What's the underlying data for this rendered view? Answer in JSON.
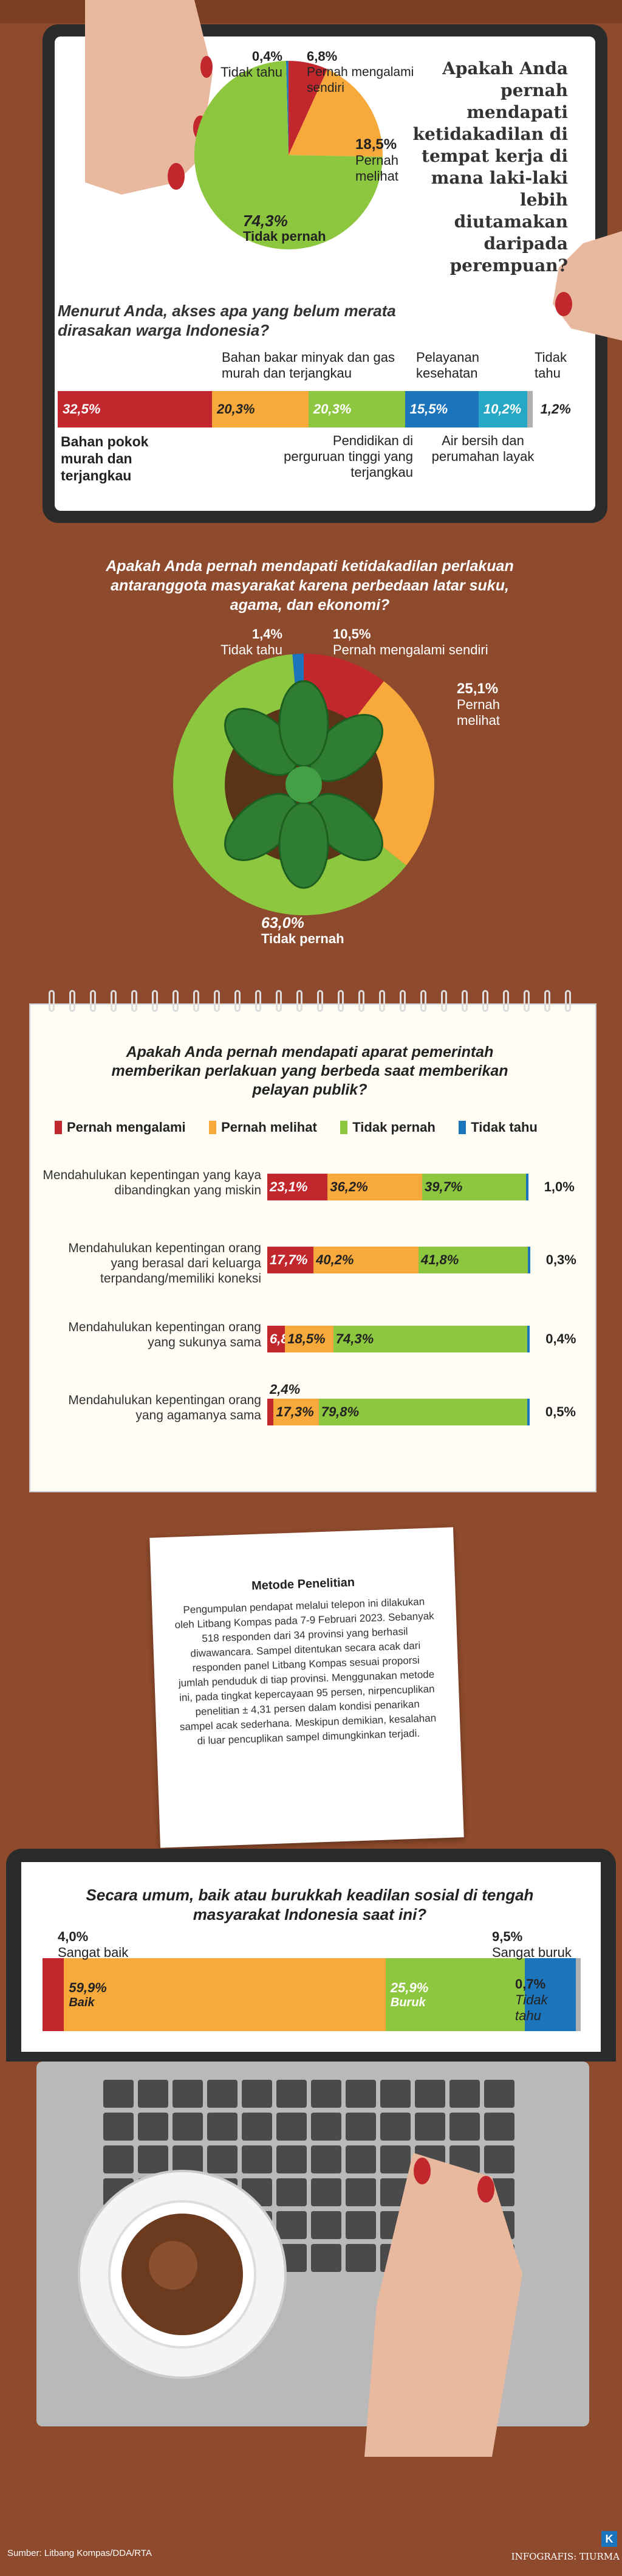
{
  "colors": {
    "red": "#c1272d",
    "orange": "#f7a93b",
    "green": "#8dc63f",
    "blue": "#1c75bc",
    "teal": "#26a7c4",
    "gray": "#b0b0b0",
    "bg": "#8e4a2c"
  },
  "section1": {
    "chart_data": {
      "type": "pie",
      "title": "Apakah Anda pernah mendapati ketidakadilan di tempat kerja di mana laki-laki lebih diutamakan daripada perempuan?",
      "labels": [
        "Tidak tahu",
        "Pernah mengalami sendiri",
        "Pernah melihat",
        "Tidak pernah"
      ],
      "values": [
        0.4,
        6.8,
        18.5,
        74.3
      ],
      "value_labels": [
        "0,4%",
        "6,8%",
        "18,5%",
        "74,3%"
      ],
      "colors": [
        "#1c75bc",
        "#c1272d",
        "#f7a93b",
        "#8dc63f"
      ]
    }
  },
  "section2": {
    "chart_data": {
      "type": "bar",
      "orientation": "stacked-horizontal",
      "title": "Menurut Anda, akses apa yang belum merata dirasakan warga Indonesia?",
      "labels": [
        "Bahan pokok murah dan terjangkau",
        "Bahan bakar minyak dan gas murah dan terjangkau",
        "Pendidikan di perguruan tinggi yang terjangkau",
        "Pelayanan kesehatan",
        "Air bersih dan perumahan layak",
        "Tidak tahu"
      ],
      "values": [
        32.5,
        20.3,
        20.3,
        15.5,
        10.2,
        1.2
      ],
      "value_labels": [
        "32,5%",
        "20,3%",
        "20,3%",
        "15,5%",
        "10,2%",
        "1,2%"
      ],
      "colors": [
        "#c1272d",
        "#f7a93b",
        "#8dc63f",
        "#1c75bc",
        "#26a7c4",
        "#b0b0b0"
      ]
    }
  },
  "section3": {
    "chart_data": {
      "type": "pie",
      "title": "Apakah Anda pernah mendapati ketidakadilan perlakuan antaranggota masyarakat karena perbedaan latar suku, agama, dan ekonomi?",
      "labels": [
        "Tidak tahu",
        "Pernah mengalami sendiri",
        "Pernah melihat",
        "Tidak pernah"
      ],
      "values": [
        1.4,
        10.5,
        25.1,
        63.0
      ],
      "value_labels": [
        "1,4%",
        "10,5%",
        "25,1%",
        "63,0%"
      ],
      "colors": [
        "#1c75bc",
        "#c1272d",
        "#f7a93b",
        "#8dc63f"
      ]
    }
  },
  "section4": {
    "chart_data": {
      "type": "bar",
      "orientation": "stacked-horizontal",
      "title": "Apakah Anda pernah mendapati aparat pemerintah memberikan perlakuan yang berbeda saat memberikan pelayan publik?",
      "series_names": [
        "Pernah mengalami",
        "Pernah melihat",
        "Tidak pernah",
        "Tidak tahu"
      ],
      "colors": [
        "#c1272d",
        "#f7a93b",
        "#8dc63f",
        "#1c75bc"
      ],
      "categories": [
        "Mendahulukan kepentingan yang kaya dibandingkan yang miskin",
        "Mendahulukan kepentingan orang yang berasal dari keluarga terpandang/memiliki koneksi",
        "Mendahulukan kepentingan orang yang sukunya sama",
        "Mendahulukan kepentingan orang yang agamanya sama"
      ],
      "values": [
        [
          23.1,
          36.2,
          39.7,
          1.0
        ],
        [
          17.7,
          40.2,
          41.8,
          0.3
        ],
        [
          6.8,
          18.5,
          74.3,
          0.4
        ],
        [
          2.4,
          17.3,
          79.8,
          0.5
        ]
      ],
      "value_labels": [
        [
          "23,1%",
          "36,2%",
          "39,7%",
          "1,0%"
        ],
        [
          "17,7%",
          "40,2%",
          "41,8%",
          "0,3%"
        ],
        [
          "6,8%",
          "18,5%",
          "74,3%",
          "0,4%"
        ],
        [
          "2,4%",
          "17,3%",
          "79,8%",
          "0,5%"
        ]
      ]
    }
  },
  "method": {
    "title": "Metode Penelitian",
    "body": "Pengumpulan pendapat melalui telepon ini dilakukan oleh Litbang Kompas pada 7-9 Februari 2023. Sebanyak 518 responden dari 34 provinsi yang berhasil diwawancara. Sampel ditentukan secara acak dari responden panel Litbang Kompas sesuai proporsi jumlah penduduk di tiap provinsi. Menggunakan metode ini, pada tingkat kepercayaan 95 persen, nirpencuplikan penelitian ± 4,31 persen dalam kondisi penarikan sampel acak sederhana. Meskipun demikian, kesalahan di luar pencuplikan sampel dimungkinkan terjadi."
  },
  "section5": {
    "chart_data": {
      "type": "bar",
      "orientation": "stacked-horizontal",
      "title": "Secara umum, baik atau burukkah keadilan sosial di tengah masyarakat Indonesia saat ini?",
      "labels": [
        "Sangat baik",
        "Baik",
        "Buruk",
        "Sangat buruk",
        "Tidak tahu"
      ],
      "values": [
        4.0,
        59.9,
        25.9,
        9.5,
        0.7
      ],
      "value_labels": [
        "4,0%",
        "59,9%",
        "25,9%",
        "9,5%",
        "0,7%"
      ],
      "colors": [
        "#c1272d",
        "#f7a93b",
        "#8dc63f",
        "#1c75bc",
        "#b0b0b0"
      ]
    }
  },
  "footer": {
    "source": "Sumber: Litbang Kompas/DDA/RTA",
    "credit": "INFOGRAFIS: TIURMA",
    "logo_letter": "K"
  }
}
